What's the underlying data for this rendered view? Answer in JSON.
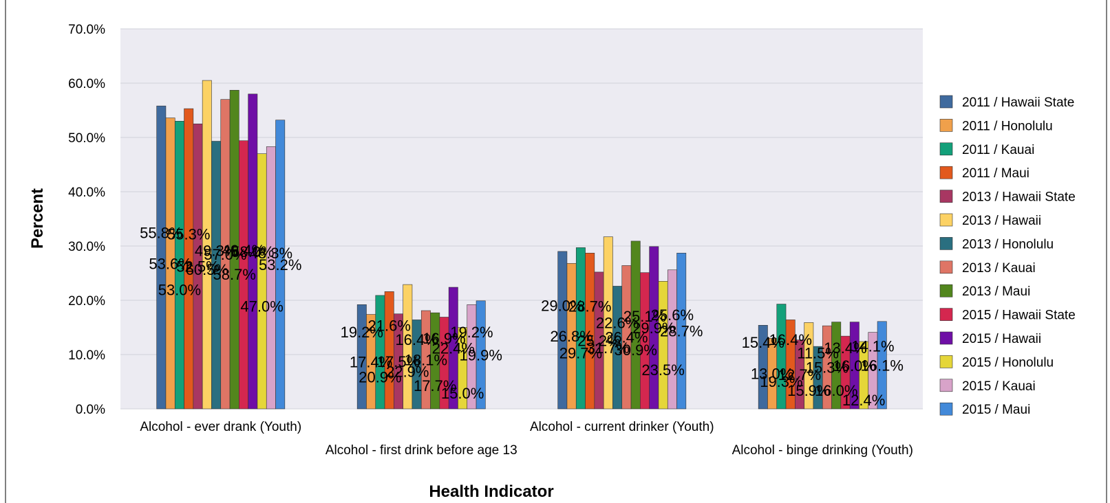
{
  "chart_data": {
    "type": "bar",
    "xlabel": "Health Indicator",
    "ylabel": "Percent",
    "ylim": [
      0,
      70
    ],
    "yticks": [
      "0.0%",
      "10.0%",
      "20.0%",
      "30.0%",
      "40.0%",
      "50.0%",
      "60.0%",
      "70.0%"
    ],
    "grid": true,
    "legend_position": "right",
    "categories": [
      "Alcohol - ever drank (Youth)",
      "Alcohol - first drink before age 13",
      "Alcohol - current drinker (Youth)",
      "Alcohol - binge drinking (Youth)"
    ],
    "series": [
      {
        "name": "2011 / Hawaii State",
        "color": "#3f6a9e",
        "values": [
          55.8,
          19.2,
          29.0,
          15.4
        ]
      },
      {
        "name": "2011 / Honolulu",
        "color": "#f0a04b",
        "values": [
          53.6,
          17.4,
          26.8,
          13.0
        ]
      },
      {
        "name": "2011 / Kauai",
        "color": "#13a07a",
        "values": [
          53.0,
          20.9,
          29.7,
          19.3
        ]
      },
      {
        "name": "2011 / Maui",
        "color": "#e2591d",
        "values": [
          55.3,
          21.6,
          28.7,
          16.4
        ]
      },
      {
        "name": "2013 / Hawaii State",
        "color": "#a83762",
        "values": [
          52.5,
          17.5,
          25.2,
          12.7
        ]
      },
      {
        "name": "2013 / Hawaii",
        "color": "#fcd264",
        "values": [
          60.5,
          22.9,
          31.7,
          15.9
        ]
      },
      {
        "name": "2013 / Honolulu",
        "color": "#2a6f80",
        "values": [
          49.3,
          16.4,
          22.6,
          11.5
        ]
      },
      {
        "name": "2013 / Kauai",
        "color": "#df7565",
        "values": [
          57.0,
          18.1,
          26.4,
          15.3
        ]
      },
      {
        "name": "2013 / Maui",
        "color": "#52861d",
        "values": [
          58.7,
          17.7,
          30.9,
          16.0
        ]
      },
      {
        "name": "2015 / Hawaii State",
        "color": "#d4274f",
        "values": [
          49.4,
          16.9,
          25.1,
          13.4
        ]
      },
      {
        "name": "2015 / Hawaii",
        "color": "#6f0fa6",
        "values": [
          58.0,
          22.4,
          29.9,
          16.0
        ]
      },
      {
        "name": "2015 / Honolulu",
        "color": "#e5d639",
        "values": [
          47.0,
          15.0,
          23.5,
          12.4
        ]
      },
      {
        "name": "2015 / Kauai",
        "color": "#d8a3c9",
        "values": [
          48.3,
          19.2,
          25.6,
          14.1
        ]
      },
      {
        "name": "2015 / Maui",
        "color": "#4289d9",
        "values": [
          53.2,
          19.9,
          28.7,
          16.1
        ]
      }
    ]
  }
}
